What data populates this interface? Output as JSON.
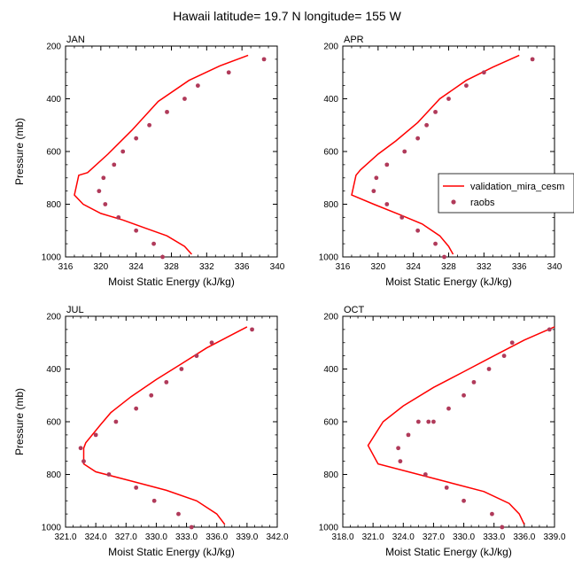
{
  "title": "Hawaii  latitude= 19.7 N longitude= 155 W",
  "legend": {
    "line_label": "validation_mira_cesm",
    "dot_label": "raobs"
  },
  "colors": {
    "line": "#ff0000",
    "dot": "#b03a5a"
  },
  "chart_data": [
    {
      "type": "line",
      "label": "JAN",
      "xlabel": "Moist Static Energy (kJ/kg)",
      "ylabel": "Pressure (mb)",
      "xlim": [
        316,
        340
      ],
      "ylim": [
        1000,
        200
      ],
      "xticks": [
        316,
        320,
        324,
        328,
        332,
        336,
        340
      ],
      "xtick_labels": [
        "316",
        "320",
        "324",
        "328",
        "332",
        "336",
        "340"
      ],
      "yticks": [
        200,
        400,
        600,
        800,
        1000
      ],
      "y_reversed": true,
      "series": [
        {
          "kind": "line",
          "x": [
            336.7,
            333.5,
            330.0,
            326.5,
            323.5,
            320.8,
            318.5,
            317.5,
            317.0,
            318.0,
            320.0,
            322.5,
            325.0,
            327.5,
            329.5,
            330.3
          ],
          "y": [
            235,
            275,
            330,
            410,
            520,
            610,
            680,
            690,
            765,
            800,
            835,
            860,
            890,
            920,
            960,
            990
          ]
        },
        {
          "kind": "dots",
          "x": [
            338.5,
            334.5,
            331.0,
            329.5,
            327.5,
            325.5,
            324.0,
            322.5,
            321.5,
            320.3,
            319.8,
            320.5,
            322.0,
            324.0,
            326.0,
            327.0
          ],
          "y": [
            250,
            300,
            350,
            400,
            450,
            500,
            550,
            600,
            650,
            700,
            750,
            800,
            850,
            900,
            950,
            1000
          ]
        }
      ]
    },
    {
      "type": "line",
      "label": "APR",
      "xlabel": "Moist Static Energy (kJ/kg)",
      "ylabel": "",
      "xlim": [
        316,
        340
      ],
      "ylim": [
        1000,
        200
      ],
      "xticks": [
        316,
        320,
        324,
        328,
        332,
        336,
        340
      ],
      "xtick_labels": [
        "316",
        "320",
        "324",
        "328",
        "332",
        "336",
        "340"
      ],
      "yticks": [
        200,
        400,
        600,
        800,
        1000
      ],
      "y_reversed": true,
      "series": [
        {
          "kind": "line",
          "x": [
            336.0,
            333.0,
            330.0,
            327.0,
            324.5,
            322.0,
            320.0,
            318.0,
            317.5,
            317.0,
            319.5,
            322.5,
            325.0,
            327.0,
            328.0,
            328.5
          ],
          "y": [
            235,
            280,
            330,
            400,
            490,
            560,
            610,
            670,
            690,
            765,
            800,
            840,
            875,
            920,
            960,
            990
          ]
        },
        {
          "kind": "dots",
          "x": [
            337.5,
            332.0,
            330.0,
            328.0,
            326.5,
            325.5,
            324.5,
            323.0,
            321.0,
            319.8,
            319.5,
            321.0,
            322.7,
            324.5,
            326.5,
            327.5
          ],
          "y": [
            250,
            300,
            350,
            400,
            450,
            500,
            550,
            600,
            650,
            700,
            750,
            800,
            850,
            900,
            950,
            1000
          ]
        }
      ]
    },
    {
      "type": "line",
      "label": "JUL",
      "xlabel": "Moist Static Energy (kJ/kg)",
      "ylabel": "Pressure (mb)",
      "xlim": [
        321,
        342
      ],
      "ylim": [
        1000,
        200
      ],
      "xticks": [
        321,
        324,
        327,
        330,
        333,
        336,
        339,
        342
      ],
      "xtick_labels": [
        "321.0",
        "324.0",
        "327.0",
        "330.0",
        "333.0",
        "336.0",
        "339.0",
        "342.0"
      ],
      "yticks": [
        200,
        400,
        600,
        800,
        1000
      ],
      "y_reversed": true,
      "series": [
        {
          "kind": "line",
          "x": [
            339.0,
            337.5,
            335.0,
            332.5,
            330.0,
            327.5,
            325.5,
            324.5,
            323.0,
            322.8,
            322.8,
            324.0,
            327.5,
            331.0,
            334.0,
            336.0,
            336.8
          ],
          "y": [
            240,
            270,
            320,
            380,
            440,
            505,
            565,
            610,
            680,
            700,
            760,
            790,
            825,
            860,
            900,
            950,
            990
          ]
        },
        {
          "kind": "dots",
          "x": [
            339.5,
            335.5,
            334.0,
            332.5,
            331.0,
            329.5,
            328.0,
            326.0,
            324.0,
            322.5,
            322.8,
            325.3,
            328.0,
            329.8,
            332.2,
            333.5
          ],
          "y": [
            250,
            300,
            350,
            400,
            450,
            500,
            550,
            600,
            650,
            700,
            750,
            800,
            850,
            900,
            950,
            1000
          ]
        }
      ]
    },
    {
      "type": "line",
      "label": "OCT",
      "xlabel": "Moist Static Energy (kJ/kg)",
      "ylabel": "",
      "xlim": [
        318,
        339
      ],
      "ylim": [
        1000,
        200
      ],
      "xticks": [
        318,
        321,
        324,
        327,
        330,
        333,
        336,
        339
      ],
      "xtick_labels": [
        "318.0",
        "321.0",
        "324.0",
        "327.0",
        "330.0",
        "333.0",
        "336.0",
        "339.0"
      ],
      "yticks": [
        200,
        400,
        600,
        800,
        1000
      ],
      "y_reversed": true,
      "series": [
        {
          "kind": "line",
          "x": [
            339.0,
            336.0,
            333.0,
            330.0,
            327.0,
            324.0,
            322.0,
            320.5,
            321.5,
            325.0,
            328.5,
            332.0,
            334.5,
            335.5,
            336.0
          ],
          "y": [
            240,
            290,
            350,
            410,
            470,
            540,
            600,
            690,
            760,
            795,
            830,
            865,
            910,
            950,
            990
          ]
        },
        {
          "kind": "dots",
          "x": [
            338.5,
            334.8,
            334.0,
            332.5,
            331.0,
            330.0,
            328.5,
            327.0,
            326.5,
            325.5,
            324.5,
            323.5,
            323.7,
            326.2,
            328.3,
            330.0,
            332.8,
            333.8
          ],
          "y": [
            250,
            300,
            350,
            400,
            450,
            500,
            550,
            600,
            600,
            600,
            650,
            700,
            750,
            800,
            850,
            900,
            950,
            1000
          ]
        }
      ]
    }
  ]
}
